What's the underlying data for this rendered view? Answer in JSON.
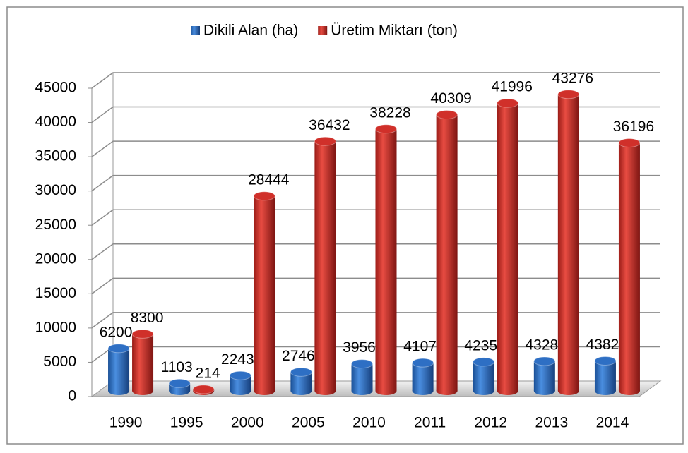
{
  "chart_data": {
    "type": "bar3d",
    "categories": [
      "1990",
      "1995",
      "2000",
      "2005",
      "2010",
      "2011",
      "2012",
      "2013",
      "2014"
    ],
    "series": [
      {
        "name": "Dikili Alan (ha)",
        "color": "#2e6fc4",
        "values": [
          6200,
          1103,
          2243,
          2746,
          3956,
          4107,
          4235,
          4328,
          4382
        ]
      },
      {
        "name": "Üretim Miktarı (ton)",
        "color": "#d0302a",
        "values": [
          8300,
          214,
          28444,
          36432,
          38228,
          40309,
          41996,
          43276,
          36196
        ]
      }
    ],
    "ylim": [
      0,
      45000
    ],
    "yticks": [
      0,
      5000,
      10000,
      15000,
      20000,
      25000,
      30000,
      35000,
      40000,
      45000
    ],
    "grid": true,
    "legend": "top"
  }
}
